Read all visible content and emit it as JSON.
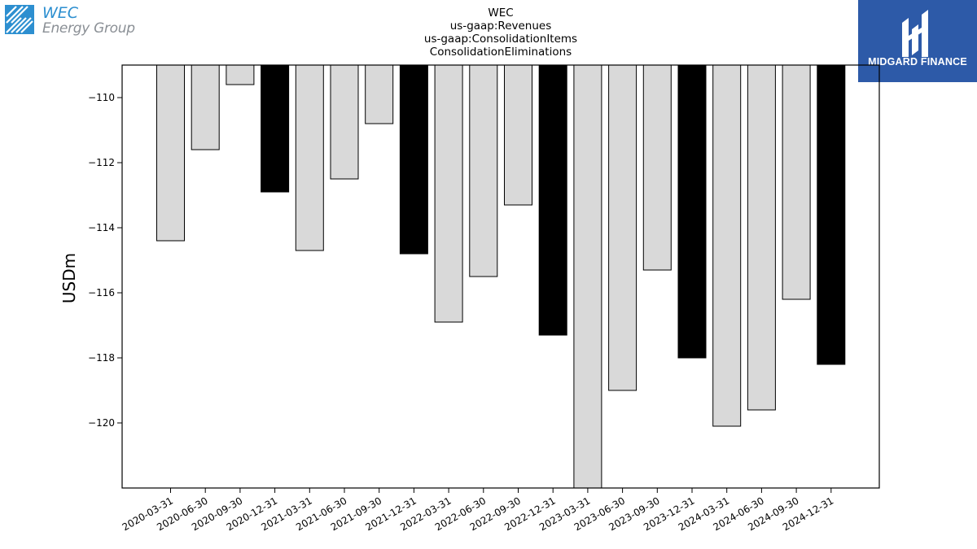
{
  "logos": {
    "left": {
      "line1": "WEC",
      "line2": "Energy Group",
      "color_primary": "#2d8fd0",
      "color_secondary": "#8a8f95"
    },
    "right": {
      "name": "MIDGARD FINANCE",
      "background": "#2d5aa8"
    }
  },
  "chart_data": {
    "type": "bar",
    "title_lines": [
      "WEC",
      "us-gaap:Revenues",
      "us-gaap:ConsolidationItems",
      "ConsolidationEliminations"
    ],
    "ylabel": "USDm",
    "xlabel": "",
    "ylim": [
      -122,
      -109
    ],
    "yticks": [
      -110,
      -112,
      -114,
      -116,
      -118,
      -120
    ],
    "ytick_labels": [
      "−110",
      "−112",
      "−114",
      "−116",
      "−118",
      "−120"
    ],
    "categories": [
      "2020-03-31",
      "2020-06-30",
      "2020-09-30",
      "2020-12-31",
      "2021-03-31",
      "2021-06-30",
      "2021-09-30",
      "2021-12-31",
      "2022-03-31",
      "2022-06-30",
      "2022-09-30",
      "2022-12-31",
      "2023-03-31",
      "2023-06-30",
      "2023-09-30",
      "2023-12-31",
      "2024-03-31",
      "2024-06-30",
      "2024-09-30",
      "2024-12-31"
    ],
    "values": [
      -114.4,
      -111.6,
      -109.6,
      -112.9,
      -114.7,
      -112.5,
      -110.8,
      -114.8,
      -116.9,
      -115.5,
      -113.3,
      -117.3,
      -122.5,
      -119.0,
      -115.3,
      -118.0,
      -120.1,
      -119.6,
      -116.2,
      -118.2
    ],
    "colors": {
      "quarter": "#d9d9d9",
      "year_end": "#000000",
      "edge": "#000000"
    },
    "highlight_pattern": "12-31 bars drawn in year_end color",
    "grid": false,
    "legend": "none"
  }
}
